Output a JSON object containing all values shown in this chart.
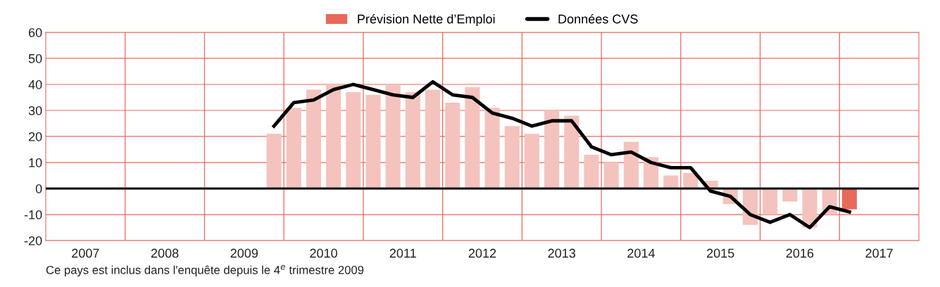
{
  "chart_data": {
    "type": "bar",
    "x": [
      2009.875,
      2010.125,
      2010.375,
      2010.625,
      2010.875,
      2011.125,
      2011.375,
      2011.625,
      2011.875,
      2012.125,
      2012.375,
      2012.625,
      2012.875,
      2013.125,
      2013.375,
      2013.625,
      2013.875,
      2014.125,
      2014.375,
      2014.625,
      2014.875,
      2015.125,
      2015.375,
      2015.625,
      2015.875,
      2016.125,
      2016.375,
      2016.625,
      2016.875,
      2017.125
    ],
    "series": [
      {
        "name": "Prévision Nette d’Emploi",
        "color": "#e8695a",
        "colors": [
          "#f4c3be",
          "#f4c3be",
          "#f4c3be",
          "#f4c3be",
          "#f4c3be",
          "#f4c3be",
          "#f4c3be",
          "#f4c3be",
          "#f4c3be",
          "#f4c3be",
          "#f4c3be",
          "#f4c3be",
          "#f4c3be",
          "#f4c3be",
          "#f4c3be",
          "#f4c3be",
          "#f4c3be",
          "#f4c3be",
          "#f4c3be",
          "#f4c3be",
          "#f4c3be",
          "#f4c3be",
          "#f4c3be",
          "#f4c3be",
          "#f4c3be",
          "#f4c3be",
          "#f4c3be",
          "#f4c3be",
          "#f4c3be",
          "#e8695a"
        ],
        "values": [
          21,
          31,
          38,
          40,
          37,
          36,
          40,
          37,
          38,
          33,
          39,
          31,
          24,
          21,
          30,
          28,
          13,
          10,
          18,
          12,
          5,
          6,
          3,
          -6,
          -14,
          -10,
          -5,
          -15,
          -10,
          -8
        ]
      },
      {
        "name": "Données CVS",
        "type": "line",
        "color": "#000000",
        "values": [
          24,
          33,
          34,
          38,
          40,
          38,
          36,
          35,
          41,
          36,
          35,
          29,
          27,
          24,
          26,
          26,
          16,
          13,
          14,
          10,
          8,
          8,
          -1,
          -3,
          -10,
          -13,
          -10,
          -15,
          -7,
          -9
        ]
      }
    ],
    "xlim": [
      2007,
      2018
    ],
    "xticks": [
      {
        "value": 2007.5,
        "label": "2007"
      },
      {
        "value": 2008.5,
        "label": "2008"
      },
      {
        "value": 2009.5,
        "label": "2009"
      },
      {
        "value": 2010.5,
        "label": "2010"
      },
      {
        "value": 2011.5,
        "label": "2011"
      },
      {
        "value": 2012.5,
        "label": "2012"
      },
      {
        "value": 2013.5,
        "label": "2013"
      },
      {
        "value": 2014.5,
        "label": "2014"
      },
      {
        "value": 2015.5,
        "label": "2015"
      },
      {
        "value": 2016.5,
        "label": "2016"
      },
      {
        "value": 2017.5,
        "label": "2017"
      },
      {
        "value": 2008,
        "label": null
      },
      {
        "value": 2009,
        "label": null
      },
      {
        "value": 2010,
        "label": null
      },
      {
        "value": 2011,
        "label": null
      },
      {
        "value": 2012,
        "label": null
      },
      {
        "value": 2013,
        "label": null
      },
      {
        "value": 2014,
        "label": null
      },
      {
        "value": 2015,
        "label": null
      },
      {
        "value": 2016,
        "label": null
      },
      {
        "value": 2017,
        "label": null
      }
    ],
    "ylim": [
      -20,
      60
    ],
    "yticks": [
      -20,
      -10,
      0,
      10,
      20,
      30,
      40,
      50,
      60
    ],
    "grid": true,
    "legend": "top",
    "ref_lines": [
      {
        "axis": "y",
        "value": 0,
        "color": "#000000"
      }
    ],
    "annotations": [
      "Ce pays est inclus dans l'enquête depuis le 4$^{e}$ trimestre 2009"
    ]
  }
}
